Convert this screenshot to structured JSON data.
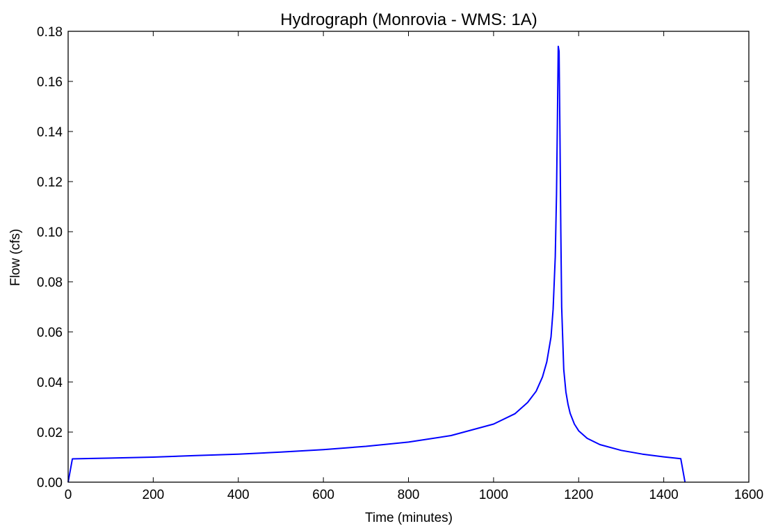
{
  "chart_data": {
    "type": "line",
    "title": "Hydrograph (Monrovia - WMS: 1A)",
    "xlabel": "Time (minutes)",
    "ylabel": "Flow (cfs)",
    "xlim": [
      0,
      1600
    ],
    "ylim": [
      0,
      0.18
    ],
    "xticks": [
      "0",
      "200",
      "400",
      "600",
      "800",
      "1000",
      "1200",
      "1400",
      "1600"
    ],
    "yticks": [
      "0.00",
      "0.02",
      "0.04",
      "0.06",
      "0.08",
      "0.10",
      "0.12",
      "0.14",
      "0.16",
      "0.18"
    ],
    "grid": false,
    "series": [
      {
        "color": "#0000ff",
        "x": [
          0,
          10,
          100,
          200,
          300,
          400,
          500,
          600,
          700,
          800,
          900,
          1000,
          1050,
          1080,
          1100,
          1115,
          1125,
          1135,
          1140,
          1145,
          1148,
          1150,
          1152,
          1154,
          1156,
          1158,
          1160,
          1165,
          1170,
          1175,
          1180,
          1190,
          1200,
          1220,
          1250,
          1300,
          1350,
          1400,
          1440,
          1450
        ],
        "y": [
          0.0,
          0.0093,
          0.0096,
          0.01,
          0.0106,
          0.0112,
          0.012,
          0.013,
          0.0143,
          0.016,
          0.0186,
          0.0232,
          0.0273,
          0.0318,
          0.0363,
          0.042,
          0.048,
          0.058,
          0.069,
          0.09,
          0.115,
          0.145,
          0.174,
          0.172,
          0.14,
          0.1,
          0.07,
          0.045,
          0.036,
          0.031,
          0.0275,
          0.0232,
          0.0205,
          0.0175,
          0.015,
          0.0127,
          0.0112,
          0.0101,
          0.0094,
          0.0
        ]
      }
    ]
  }
}
